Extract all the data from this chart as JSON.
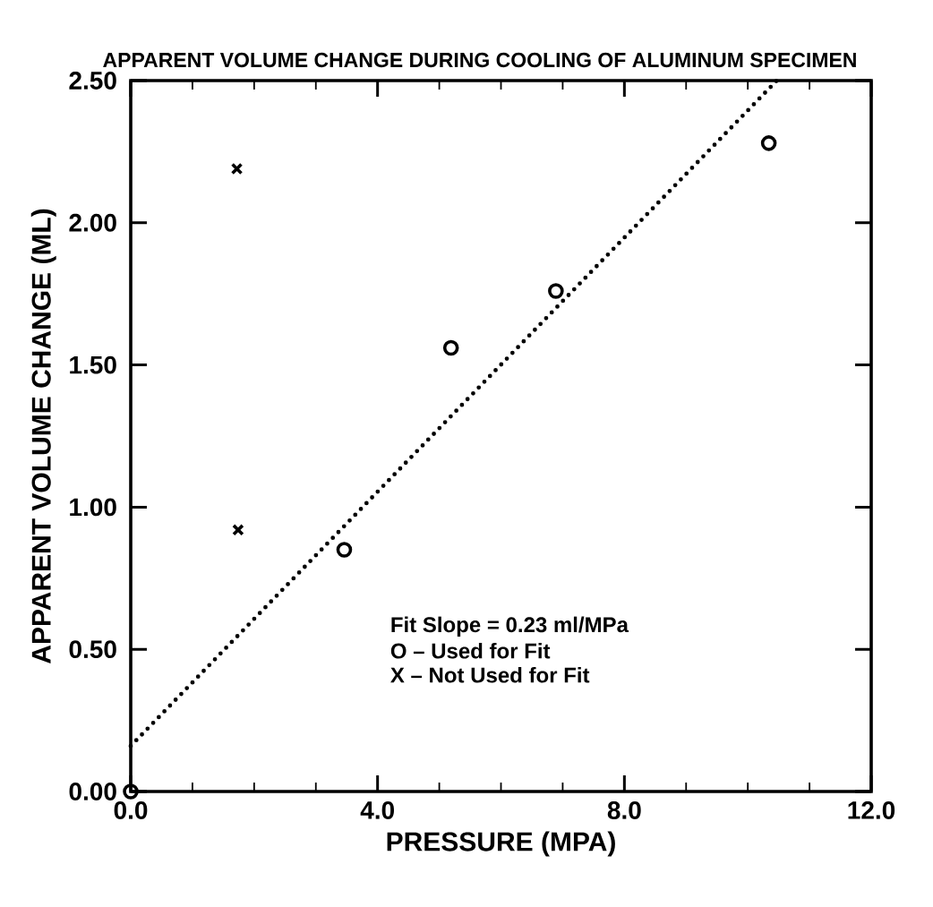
{
  "chart_data": {
    "type": "scatter",
    "title": "APPARENT VOLUME CHANGE DURING COOLING OF ALUMINUM SPECIMEN",
    "xlabel": "PRESSURE (MPA)",
    "ylabel": "APPARENT VOLUME CHANGE (ML)",
    "xlim": [
      0,
      12
    ],
    "ylim": [
      0,
      2.5
    ],
    "xticks": [
      {
        "value": 0,
        "label": "0.0"
      },
      {
        "value": 4,
        "label": "4.0"
      },
      {
        "value": 8,
        "label": "8.0"
      },
      {
        "value": 12,
        "label": "12.0"
      }
    ],
    "yticks": [
      {
        "value": 0,
        "label": "0.00"
      },
      {
        "value": 0.5,
        "label": "0.50"
      },
      {
        "value": 1,
        "label": "1.00"
      },
      {
        "value": 1.5,
        "label": "1.50"
      },
      {
        "value": 2,
        "label": "2.00"
      },
      {
        "value": 2.5,
        "label": "2.50"
      }
    ],
    "annotations": [
      "Fit Slope = 0.23 ml/MPa",
      "O – Used for Fit",
      "X – Not Used for Fit"
    ],
    "grid": false,
    "series": [
      {
        "color": "#000000",
        "marker": "circle",
        "x": [
          0,
          3.46,
          5.19,
          6.89,
          10.34
        ],
        "values": [
          0,
          0.85,
          1.56,
          1.76,
          2.28
        ]
      },
      {
        "color": "#000000",
        "marker": "cross",
        "x": [
          1.72,
          1.74
        ],
        "values": [
          2.19,
          0.92
        ]
      },
      {
        "type": "line",
        "color": "#000000",
        "line_style": "dotted",
        "marker": "none",
        "x": [
          0,
          10.47
        ],
        "values": [
          0.16,
          2.5
        ]
      }
    ]
  }
}
